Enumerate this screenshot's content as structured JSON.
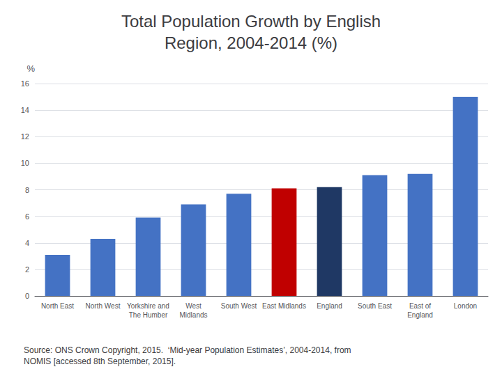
{
  "chart_data": {
    "type": "bar",
    "title": "Total Population Growth by English\nRegion, 2004-2014 (%)",
    "categories": [
      "North East",
      "North West",
      "Yorkshire and\nThe Humber",
      "West\nMidlands",
      "South West",
      "East Midlands",
      "England",
      "South East",
      "East of\nEngland",
      "London"
    ],
    "values": [
      3.1,
      4.3,
      5.9,
      6.9,
      7.7,
      8.1,
      8.2,
      9.1,
      9.2,
      15.0
    ],
    "colors": [
      "#4472C4",
      "#4472C4",
      "#4472C4",
      "#4472C4",
      "#4472C4",
      "#C00000",
      "#1F3864",
      "#4472C4",
      "#4472C4",
      "#4472C4"
    ],
    "ylabel": "%",
    "ylim": [
      0,
      16
    ],
    "yticks": [
      0,
      2,
      4,
      6,
      8,
      10,
      12,
      14,
      16
    ],
    "source": "Source: ONS Crown Copyright, 2015.  ‘Mid-year Population Estimates’, 2004-2014, from\nNOMIS [accessed 8th September, 2015].",
    "grid": true
  }
}
